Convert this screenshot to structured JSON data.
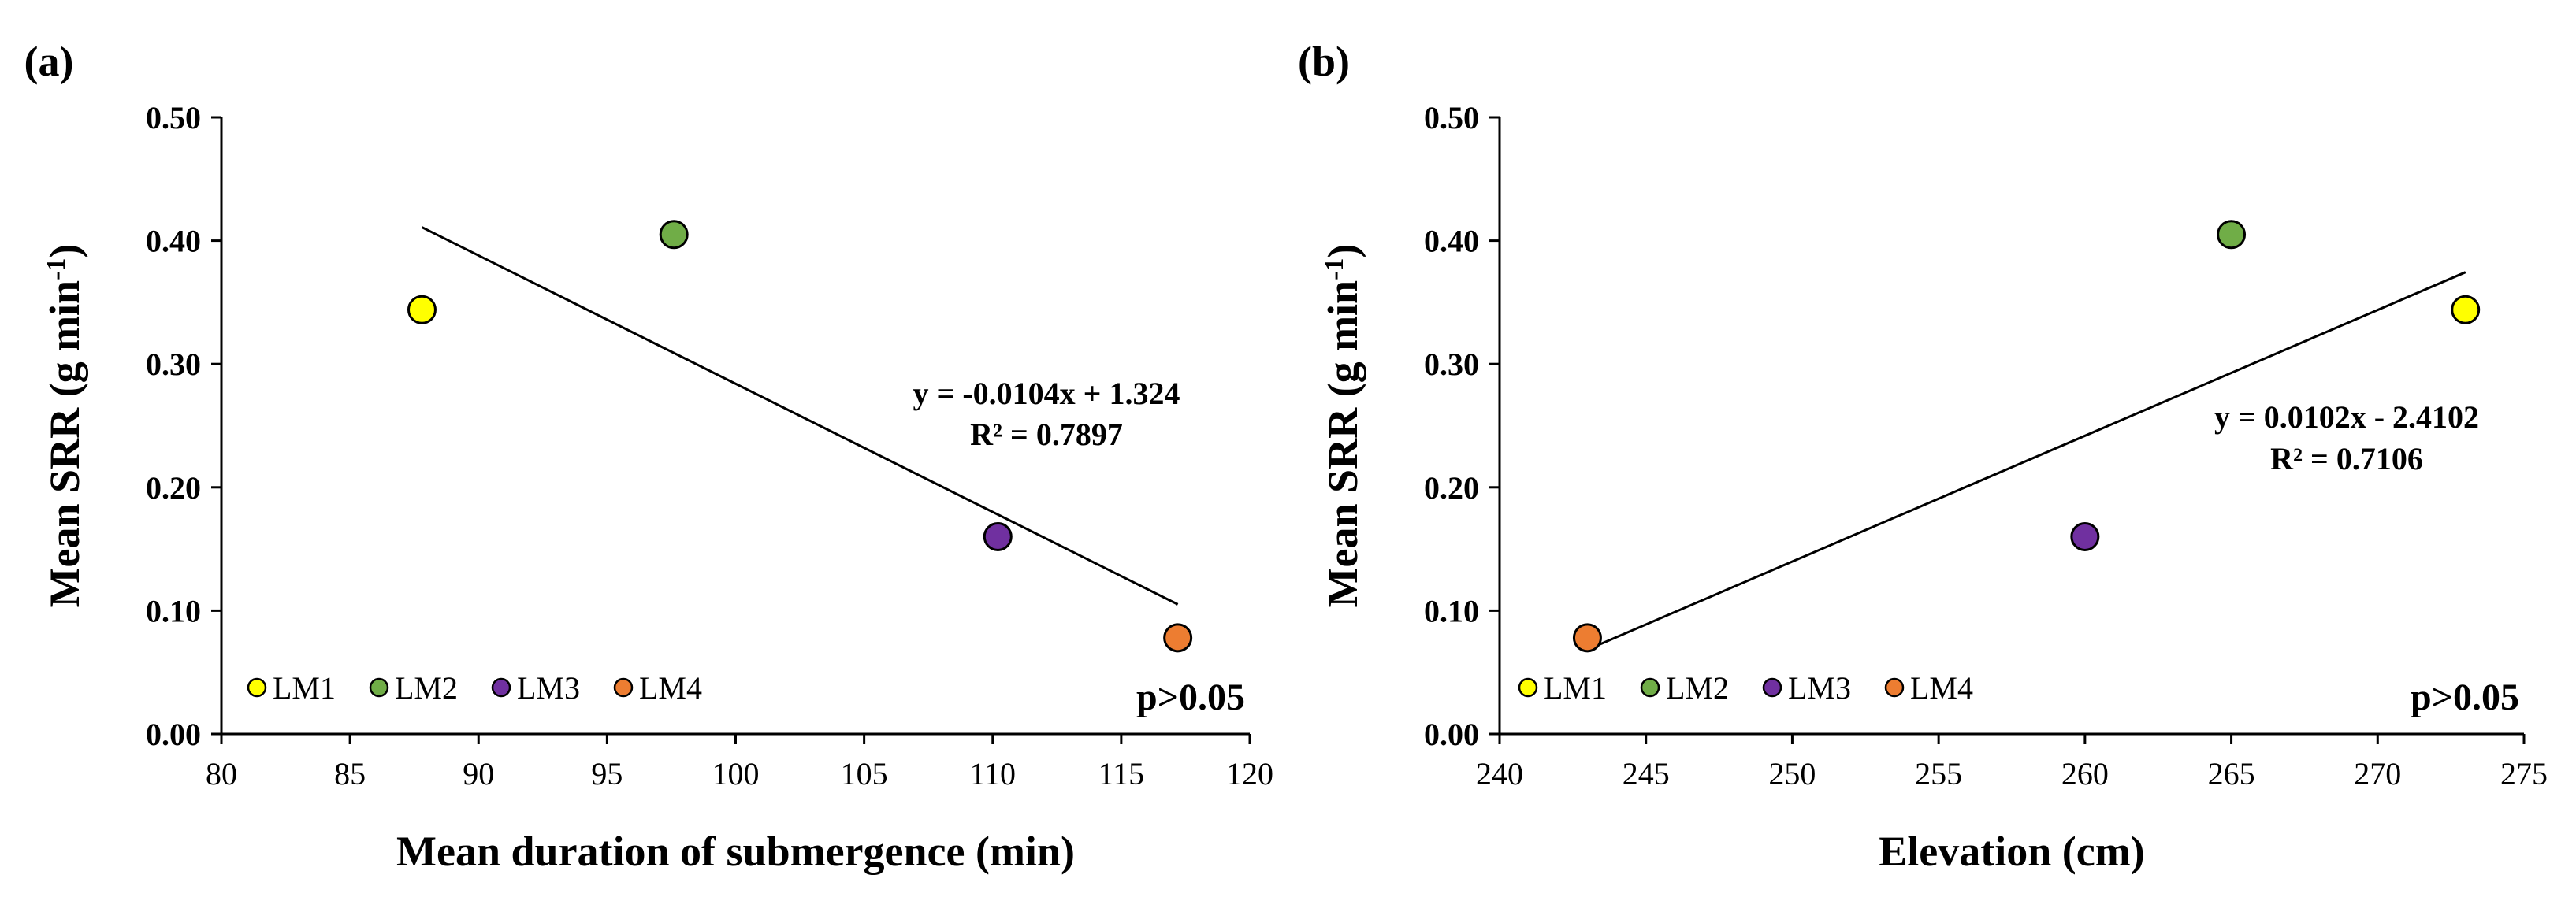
{
  "chart_data": [
    {
      "panel_label": "(a)",
      "type": "scatter",
      "xlabel": "Mean duration of submergence (min)",
      "ylabel": "Mean SRR (g min",
      "ylabel_sup": "-1",
      "ylabel_close": ")",
      "xlim": [
        80,
        120
      ],
      "ylim": [
        0,
        0.5
      ],
      "xticks": [
        "80",
        "85",
        "90",
        "95",
        "100",
        "105",
        "110",
        "115",
        "120"
      ],
      "yticks": [
        "0.00",
        "0.10",
        "0.20",
        "0.30",
        "0.40",
        "0.50"
      ],
      "points": [
        {
          "name": "LM1",
          "x": 87.8,
          "y": 0.344,
          "color": "#ffff00"
        },
        {
          "name": "LM2",
          "x": 97.6,
          "y": 0.405,
          "color": "#70ad47"
        },
        {
          "name": "LM3",
          "x": 110.2,
          "y": 0.16,
          "color": "#7030a0"
        },
        {
          "name": "LM4",
          "x": 117.2,
          "y": 0.078,
          "color": "#ed7d31"
        }
      ],
      "trendline": {
        "slope": -0.0104,
        "intercept": 1.324,
        "x_start": 87.8,
        "x_end": 117.2
      },
      "equation": "y = -0.0104x + 1.324",
      "r2": "R² = 0.7897",
      "pvalue": "p>0.05",
      "legend": [
        "LM1",
        "LM2",
        "LM3",
        "LM4"
      ]
    },
    {
      "panel_label": "(b)",
      "type": "scatter",
      "xlabel": "Elevation (cm)",
      "ylabel": "Mean SRR (g min",
      "ylabel_sup": "-1",
      "ylabel_close": ")",
      "xlim": [
        240,
        275
      ],
      "ylim": [
        0,
        0.5
      ],
      "xticks": [
        "240",
        "245",
        "250",
        "255",
        "260",
        "265",
        "270",
        "275"
      ],
      "yticks": [
        "0.00",
        "0.10",
        "0.20",
        "0.30",
        "0.40",
        "0.50"
      ],
      "points": [
        {
          "name": "LM1",
          "x": 273,
          "y": 0.344,
          "color": "#ffff00"
        },
        {
          "name": "LM2",
          "x": 265,
          "y": 0.405,
          "color": "#70ad47"
        },
        {
          "name": "LM3",
          "x": 260,
          "y": 0.16,
          "color": "#7030a0"
        },
        {
          "name": "LM4",
          "x": 243,
          "y": 0.078,
          "color": "#ed7d31"
        }
      ],
      "trendline": {
        "slope": 0.0102,
        "intercept": -2.4102,
        "x_start": 243,
        "x_end": 273
      },
      "equation": "y = 0.0102x - 2.4102",
      "r2": "R² = 0.7106",
      "pvalue": "p>0.05",
      "legend": [
        "LM1",
        "LM2",
        "LM3",
        "LM4"
      ]
    }
  ]
}
